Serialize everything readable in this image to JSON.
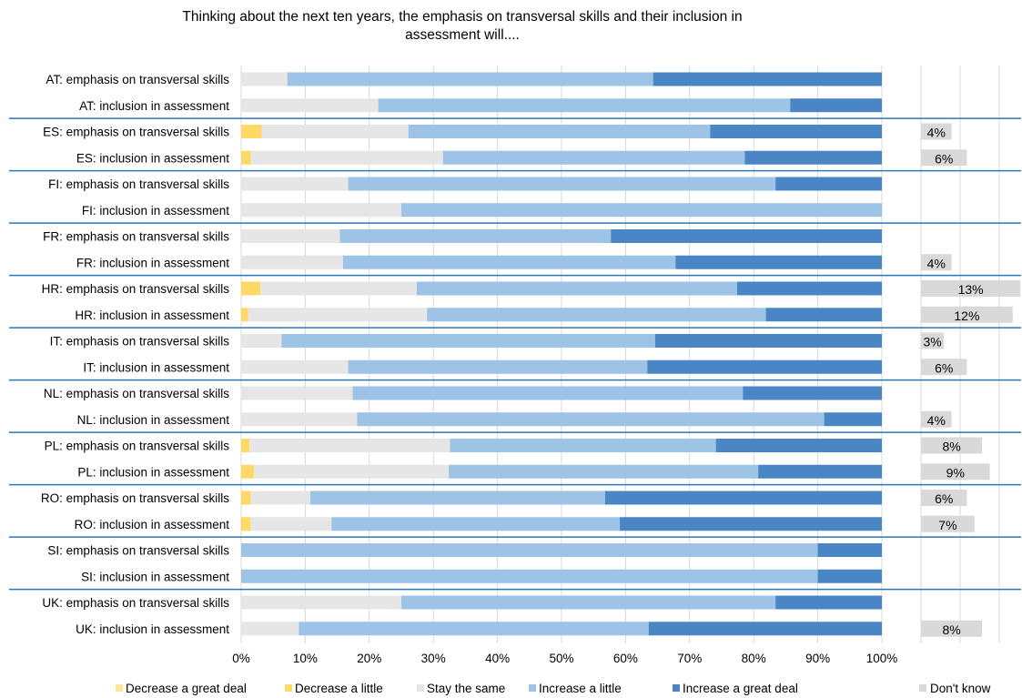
{
  "chart_data": {
    "type": "bar",
    "orientation": "horizontal",
    "stacked": "percent",
    "title_lines": [
      "Thinking about the next ten years, the emphasis on transversal skills and their inclusion in",
      "assessment will...."
    ],
    "categories": [
      "AT: emphasis on transversal skills",
      "AT: inclusion in assessment",
      "ES: emphasis on transversal skills",
      "ES: inclusion in assessment",
      "FI: emphasis on transversal skills",
      "FI: inclusion in assessment",
      "FR: emphasis on transversal skills",
      "FR: inclusion in assessment",
      "HR: emphasis on transversal skills",
      "HR: inclusion in assessment",
      "IT: emphasis on transversal skills",
      "IT: inclusion in assessment",
      "NL: emphasis on transversal skills",
      "NL: inclusion in assessment",
      "PL: emphasis on transversal skills",
      "PL: inclusion in assessment",
      "RO: emphasis on transversal skills",
      "RO: inclusion in assessment",
      "SI: emphasis on transversal skills",
      "SI: inclusion in assessment",
      "UK: emphasis on transversal skills",
      "UK: inclusion in assessment"
    ],
    "series": [
      {
        "name": "Decrease a great deal",
        "color": "#FFE699",
        "values": [
          0,
          0,
          0,
          0,
          0,
          0,
          0,
          0,
          0,
          0,
          0,
          0,
          0,
          0,
          0,
          0,
          0,
          0,
          0,
          0,
          0,
          0
        ]
      },
      {
        "name": "Decrease a little",
        "color": "#FFD966",
        "values": [
          0,
          0,
          3.2,
          1.5,
          0,
          0,
          0,
          0,
          3,
          1.1,
          0,
          0,
          0,
          0,
          1.3,
          2,
          1.5,
          1.5,
          0,
          0,
          0,
          0
        ]
      },
      {
        "name": "Stay the same",
        "color": "#E7E6E6",
        "values": [
          7.2,
          21.4,
          22.9,
          30,
          16.7,
          25,
          15.4,
          15.9,
          24.4,
          27.9,
          6.3,
          16.7,
          17.4,
          18.1,
          31.3,
          30.4,
          9.3,
          12.6,
          0,
          0,
          25,
          9
        ]
      },
      {
        "name": "Increase a little",
        "color": "#9DC3E6",
        "values": [
          57.1,
          64.3,
          47.1,
          47.1,
          66.7,
          75,
          42.3,
          51.9,
          50,
          52.9,
          58.3,
          46.7,
          60.9,
          72.9,
          41.5,
          48.3,
          46,
          45,
          90,
          90,
          58.4,
          54.6
        ]
      },
      {
        "name": "Increase a great deal",
        "color": "#4A86C5",
        "values": [
          35.7,
          14.3,
          26.8,
          21.4,
          16.6,
          0,
          42.3,
          32.2,
          22.6,
          18.1,
          35.4,
          36.6,
          21.7,
          9,
          25.9,
          19.3,
          43.2,
          40.9,
          10,
          10,
          16.6,
          36.4
        ]
      }
    ],
    "dont_know": {
      "name": "Don't know",
      "color": "#D9D9D9",
      "values": [
        null,
        null,
        4,
        6,
        null,
        null,
        null,
        4,
        13,
        12,
        3,
        6,
        null,
        4,
        8,
        9,
        6,
        7,
        null,
        null,
        null,
        8
      ],
      "labels": [
        "",
        "",
        "4%",
        "6%",
        "",
        "",
        "",
        "4%",
        "13%",
        "12%",
        "3%",
        "6%",
        "",
        "4%",
        "8%",
        "9%",
        "6%",
        "7%",
        "",
        "",
        "",
        "8%"
      ]
    },
    "x_ticks": [
      "0%",
      "10%",
      "20%",
      "30%",
      "40%",
      "50%",
      "60%",
      "70%",
      "80%",
      "90%",
      "100%"
    ],
    "xlim": [
      0,
      100
    ],
    "grid": true,
    "legend_position": "bottom",
    "colors": {
      "separator": "#2E75B6",
      "gridline": "#D9D9D9"
    }
  }
}
